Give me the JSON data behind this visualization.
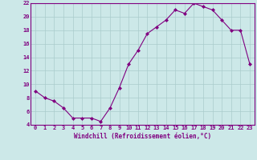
{
  "x": [
    0,
    1,
    2,
    3,
    4,
    5,
    6,
    7,
    8,
    9,
    10,
    11,
    12,
    13,
    14,
    15,
    16,
    17,
    18,
    19,
    20,
    21,
    22,
    23
  ],
  "y": [
    9,
    8,
    7.5,
    6.5,
    5,
    5,
    5,
    4.5,
    6.5,
    9.5,
    13,
    15,
    17.5,
    18.5,
    19.5,
    21,
    20.5,
    22,
    21.5,
    21,
    19.5,
    18,
    18,
    13
  ],
  "line_color": "#800080",
  "marker": "D",
  "marker_size": 2,
  "bg_color": "#cce8e8",
  "grid_color": "#aacccc",
  "xlabel": "Windchill (Refroidissement éolien,°C)",
  "xlabel_fontsize": 5.5,
  "tick_fontsize": 5,
  "ylim": [
    4,
    22
  ],
  "xlim": [
    -0.5,
    23.5
  ],
  "yticks": [
    4,
    6,
    8,
    10,
    12,
    14,
    16,
    18,
    20,
    22
  ],
  "xticks": [
    0,
    1,
    2,
    3,
    4,
    5,
    6,
    7,
    8,
    9,
    10,
    11,
    12,
    13,
    14,
    15,
    16,
    17,
    18,
    19,
    20,
    21,
    22,
    23
  ],
  "line_color_hex": "#800080",
  "axis_color": "#800080"
}
